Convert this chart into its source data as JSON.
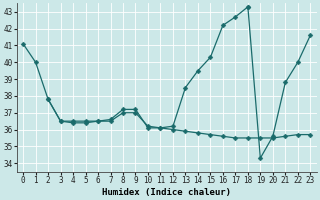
{
  "xlabel": "Humidex (Indice chaleur)",
  "xlim": [
    -0.5,
    23.5
  ],
  "ylim": [
    33.5,
    43.5
  ],
  "yticks": [
    34,
    35,
    36,
    37,
    38,
    39,
    40,
    41,
    42,
    43
  ],
  "xticks": [
    0,
    1,
    2,
    3,
    4,
    5,
    6,
    7,
    8,
    9,
    10,
    11,
    12,
    13,
    14,
    15,
    16,
    17,
    18,
    19,
    20,
    21,
    22,
    23
  ],
  "bg_color": "#cce8e8",
  "grid_color": "#ffffff",
  "line_color": "#1a6b6b",
  "line1": {
    "x": [
      0,
      1,
      2,
      3,
      4,
      5,
      6,
      7,
      8,
      9,
      10,
      11,
      12,
      13,
      14,
      15,
      16,
      17,
      18
    ],
    "y": [
      41.1,
      40.0,
      37.8,
      36.5,
      36.5,
      36.5,
      36.5,
      36.6,
      37.2,
      37.2,
      36.1,
      36.1,
      36.2,
      38.5,
      39.5,
      40.3,
      42.2,
      42.7,
      43.3
    ]
  },
  "line2": {
    "x": [
      18,
      19,
      20,
      21,
      22,
      23
    ],
    "y": [
      43.3,
      34.3,
      35.6,
      38.8,
      40.0,
      41.6
    ]
  },
  "line3": {
    "x": [
      2,
      3,
      4,
      5,
      6,
      7,
      8,
      9,
      10,
      11,
      12,
      13,
      14,
      15,
      16,
      17,
      18,
      19,
      20,
      21,
      22,
      23
    ],
    "y": [
      37.8,
      36.5,
      36.4,
      36.4,
      36.5,
      36.5,
      37.0,
      37.0,
      36.2,
      36.1,
      36.0,
      35.9,
      35.8,
      35.7,
      35.6,
      35.5,
      35.5,
      35.5,
      35.5,
      35.6,
      35.7,
      35.7
    ]
  },
  "markersize": 2.5,
  "linewidth": 0.9
}
